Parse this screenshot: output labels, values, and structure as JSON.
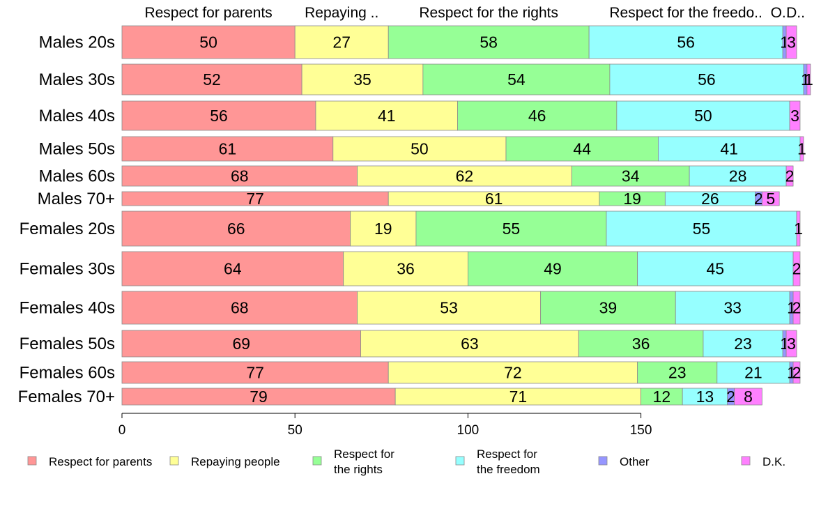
{
  "chart_data": {
    "type": "bar",
    "orientation": "horizontal",
    "stacked": true,
    "categories": [
      "Males 20s",
      "Males 30s",
      "Males 40s",
      "Males 50s",
      "Males 60s",
      "Males 70+",
      "Females 20s",
      "Females 30s",
      "Females 40s",
      "Females 50s",
      "Females 60s",
      "Females 70+"
    ],
    "series": [
      {
        "name": "Respect for parents",
        "color": "#ff9696",
        "values": [
          50,
          52,
          56,
          61,
          68,
          77,
          66,
          64,
          68,
          69,
          77,
          79
        ]
      },
      {
        "name": "Repaying people",
        "color": "#ffff96",
        "values": [
          27,
          35,
          41,
          50,
          62,
          61,
          19,
          36,
          53,
          63,
          72,
          71
        ]
      },
      {
        "name": "Respect for the rights",
        "color": "#96ff96",
        "values": [
          58,
          54,
          46,
          44,
          34,
          19,
          55,
          49,
          39,
          36,
          23,
          12
        ]
      },
      {
        "name": "Respect for the freedom",
        "color": "#96ffff",
        "values": [
          56,
          56,
          50,
          41,
          28,
          26,
          55,
          45,
          33,
          23,
          21,
          13
        ]
      },
      {
        "name": "Other",
        "color": "#9696ff",
        "values": [
          1,
          1,
          0,
          0,
          0,
          2,
          0,
          0,
          1,
          1,
          1,
          2
        ]
      },
      {
        "name": "D.K.",
        "color": "#ff80ff",
        "values": [
          3,
          1,
          3,
          1,
          2,
          5,
          1,
          2,
          2,
          3,
          2,
          8
        ]
      }
    ],
    "top_labels": [
      "Respect for parents",
      "Repaying ..",
      "Respect for the rights",
      "Respect for the freedo..",
      "O..",
      "D.."
    ],
    "legend_labels": [
      [
        "Respect for parents"
      ],
      [
        "Repaying people"
      ],
      [
        "Respect for",
        "the rights"
      ],
      [
        "Respect for",
        "the freedom"
      ],
      [
        "Other"
      ],
      [
        "D.K."
      ]
    ],
    "xticks": [
      0,
      50,
      100,
      150
    ],
    "xlim": [
      0,
      200
    ],
    "legend_position": "bottom",
    "grid": false
  }
}
